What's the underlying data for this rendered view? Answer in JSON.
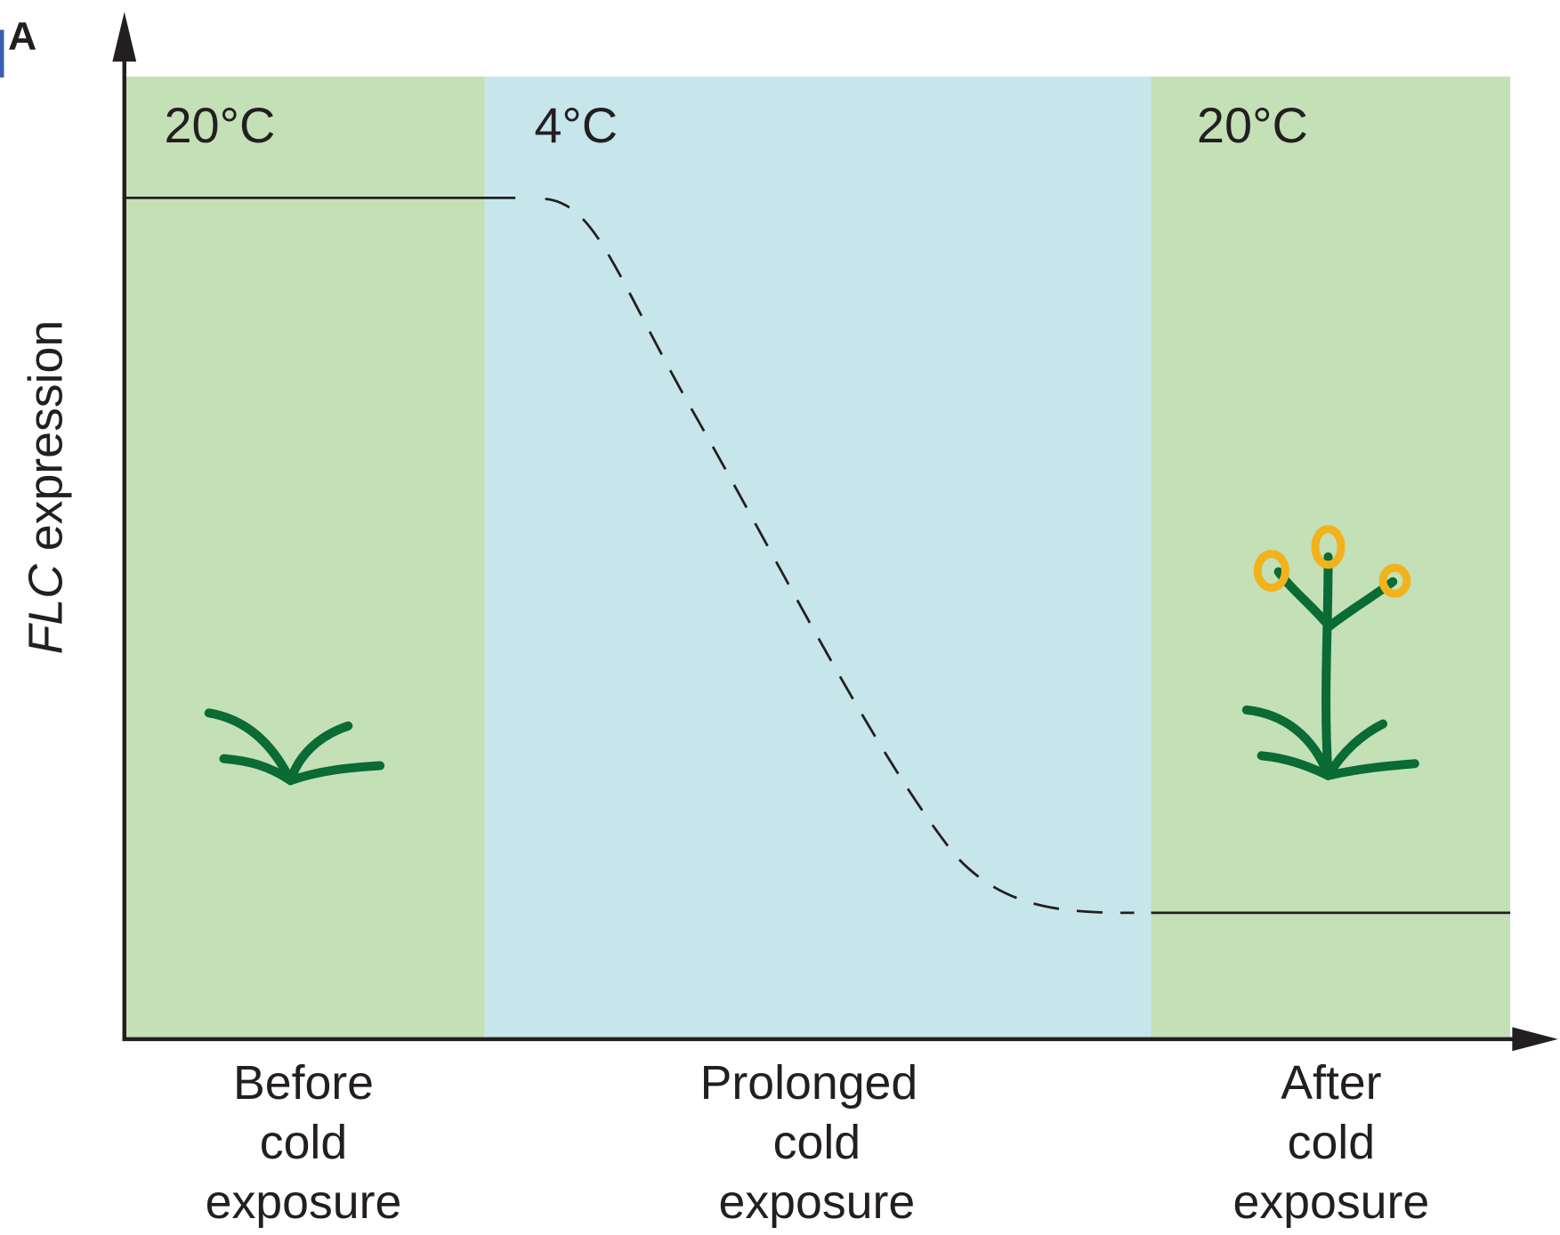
{
  "panel_label": "A",
  "y_axis": {
    "gene": "FLC",
    "label": "expression"
  },
  "phases": [
    {
      "temperature": "20°C",
      "label_lines": [
        "Before",
        "cold",
        "exposure"
      ]
    },
    {
      "temperature": "4°C",
      "label_lines": [
        "Prolonged",
        "cold",
        "exposure"
      ]
    },
    {
      "temperature": "20°C",
      "label_lines": [
        "After",
        "cold",
        "exposure"
      ]
    }
  ]
}
